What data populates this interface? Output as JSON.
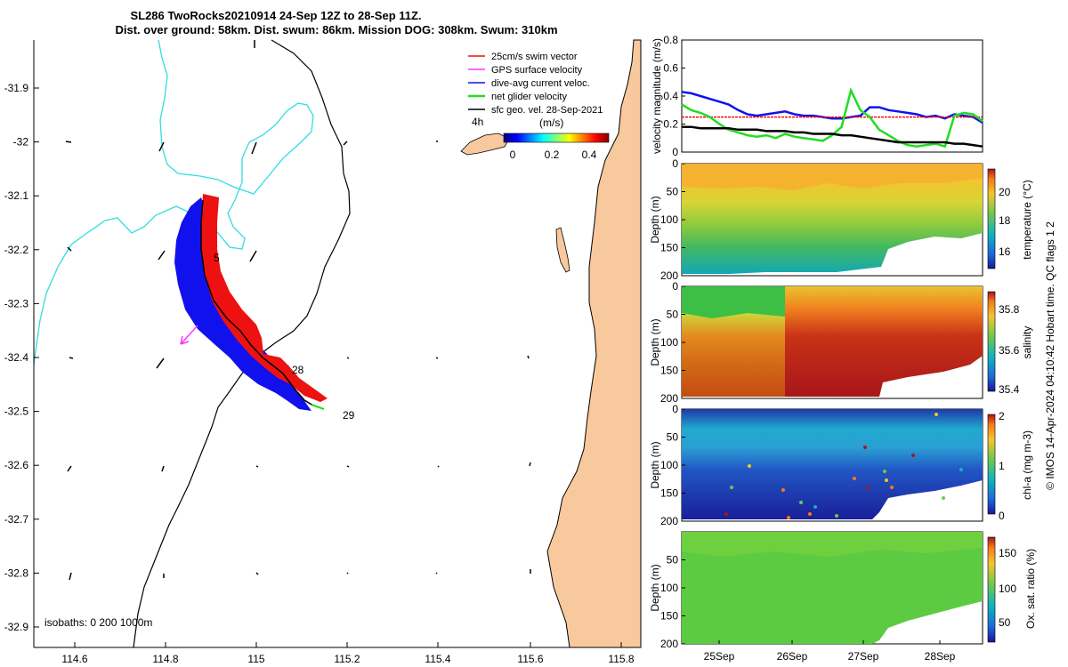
{
  "title_line1": "SL286 TwoRocks20210914 24-Sep 12Z to 28-Sep 11Z.",
  "title_line2": "Dist. over ground: 58km. Dist. swum: 86km. Mission DOG: 308km. Swum: 310km",
  "footer": "© IMOS 14-Apr-2024 04:10:42 Hobart time. QC flags 1  2",
  "colors": {
    "land": "#f8c99c",
    "coast": "#000000",
    "isobath": "#33dddd",
    "swim": "#ee1111",
    "gps": "#ff33ff",
    "dive_avg": "#1111ee",
    "net": "#22dd22",
    "sfc_geo": "#000000",
    "track_red": "#ee1111",
    "track_blue": "#1111ee"
  },
  "map": {
    "lon_ticks": [
      "114.6",
      "114.8",
      "115",
      "115.2",
      "115.4",
      "115.6",
      "115.8"
    ],
    "lat_ticks": [
      "-31.9",
      "-32",
      "-32.1",
      "-32.2",
      "-32.3",
      "-32.4",
      "-32.5",
      "-32.6",
      "-32.7",
      "-32.8",
      "-32.9"
    ],
    "isobath_label": "isobaths: 0   200  1000m",
    "track_labels": [
      "5",
      "28",
      "29"
    ],
    "legend": [
      "25cm/s swim vector",
      "GPS surface velocity",
      "dive-avg current veloc.",
      "net glider velocity",
      "sfc geo. vel. 28-Sep-2021"
    ],
    "colorbar_label": "(m/s)",
    "colorbar_ticks": [
      "0",
      "0.2",
      "0.4"
    ],
    "colorbar_time": "4h"
  },
  "chart_data": [
    {
      "type": "line",
      "ylabel": "velocity magnitude (m/s)",
      "ylim": [
        0,
        0.8
      ],
      "yticks": [
        "0",
        "0.2",
        "0.4",
        "0.6",
        "0.8"
      ],
      "x_range_days": [
        "24-Sep 12Z",
        "28-Sep 11Z"
      ],
      "series": [
        {
          "name": "dive-avg current veloc.",
          "color": "#1111ee",
          "values": [
            0.43,
            0.42,
            0.4,
            0.38,
            0.36,
            0.34,
            0.3,
            0.27,
            0.26,
            0.27,
            0.28,
            0.29,
            0.27,
            0.26,
            0.26,
            0.25,
            0.24,
            0.24,
            0.25,
            0.26,
            0.32,
            0.32,
            0.3,
            0.29,
            0.28,
            0.27,
            0.25,
            0.26,
            0.24,
            0.27,
            0.26,
            0.25,
            0.21
          ]
        },
        {
          "name": "25cm/s swim vector",
          "color": "#ee1111",
          "values": [
            0.25,
            0.25,
            0.25,
            0.25,
            0.25,
            0.25,
            0.25,
            0.25,
            0.25,
            0.25,
            0.25,
            0.25,
            0.25,
            0.25,
            0.25,
            0.25,
            0.25,
            0.25,
            0.25,
            0.25,
            0.25,
            0.25,
            0.25,
            0.25,
            0.25,
            0.25,
            0.25,
            0.25,
            0.25,
            0.25,
            0.25,
            0.25,
            0.25
          ]
        },
        {
          "name": "net glider velocity",
          "color": "#22dd22",
          "values": [
            0.34,
            0.3,
            0.28,
            0.25,
            0.2,
            0.16,
            0.14,
            0.12,
            0.11,
            0.12,
            0.1,
            0.13,
            0.11,
            0.1,
            0.09,
            0.08,
            0.12,
            0.18,
            0.44,
            0.3,
            0.25,
            0.16,
            0.12,
            0.08,
            0.05,
            0.04,
            0.05,
            0.06,
            0.04,
            0.26,
            0.28,
            0.27,
            0.22
          ]
        },
        {
          "name": "sfc geo. vel. 28-Sep-2021",
          "color": "#000000",
          "values": [
            0.18,
            0.18,
            0.17,
            0.17,
            0.17,
            0.17,
            0.16,
            0.16,
            0.16,
            0.15,
            0.15,
            0.15,
            0.14,
            0.14,
            0.13,
            0.13,
            0.13,
            0.12,
            0.12,
            0.11,
            0.1,
            0.09,
            0.08,
            0.07,
            0.07,
            0.07,
            0.07,
            0.07,
            0.07,
            0.06,
            0.06,
            0.05,
            0.04
          ]
        }
      ]
    },
    {
      "type": "heatmap",
      "ylabel": "Depth (m)",
      "ylim": [
        200,
        0
      ],
      "yticks": [
        "0",
        "50",
        "100",
        "150",
        "200"
      ],
      "colorbar_label": "temperature (°C)",
      "colorbar_ticks": [
        "16",
        "18",
        "20"
      ],
      "clim": [
        15,
        21
      ]
    },
    {
      "type": "heatmap",
      "ylabel": "Depth (m)",
      "ylim": [
        200,
        0
      ],
      "yticks": [
        "0",
        "50",
        "100",
        "150",
        "200"
      ],
      "colorbar_label": "salinity",
      "colorbar_ticks": [
        "35.4",
        "35.6",
        "35.8"
      ],
      "clim": [
        35.35,
        35.9
      ]
    },
    {
      "type": "heatmap",
      "ylabel": "Depth (m)",
      "ylim": [
        200,
        0
      ],
      "yticks": [
        "0",
        "50",
        "100",
        "150",
        "200"
      ],
      "colorbar_label": "chl-a (mg m-3)",
      "colorbar_ticks": [
        "0",
        "1",
        "2"
      ],
      "clim": [
        0,
        2
      ]
    },
    {
      "type": "heatmap",
      "ylabel": "Depth (m)",
      "ylim": [
        200,
        0
      ],
      "yticks": [
        "50",
        "100",
        "150",
        "200"
      ],
      "colorbar_label": "Ox. sat. ratio (%)",
      "colorbar_ticks": [
        "50",
        "100",
        "150"
      ],
      "clim": [
        25,
        175
      ],
      "xlabels": [
        "25Sep",
        "26Sep",
        "27Sep",
        "28Sep"
      ]
    }
  ]
}
